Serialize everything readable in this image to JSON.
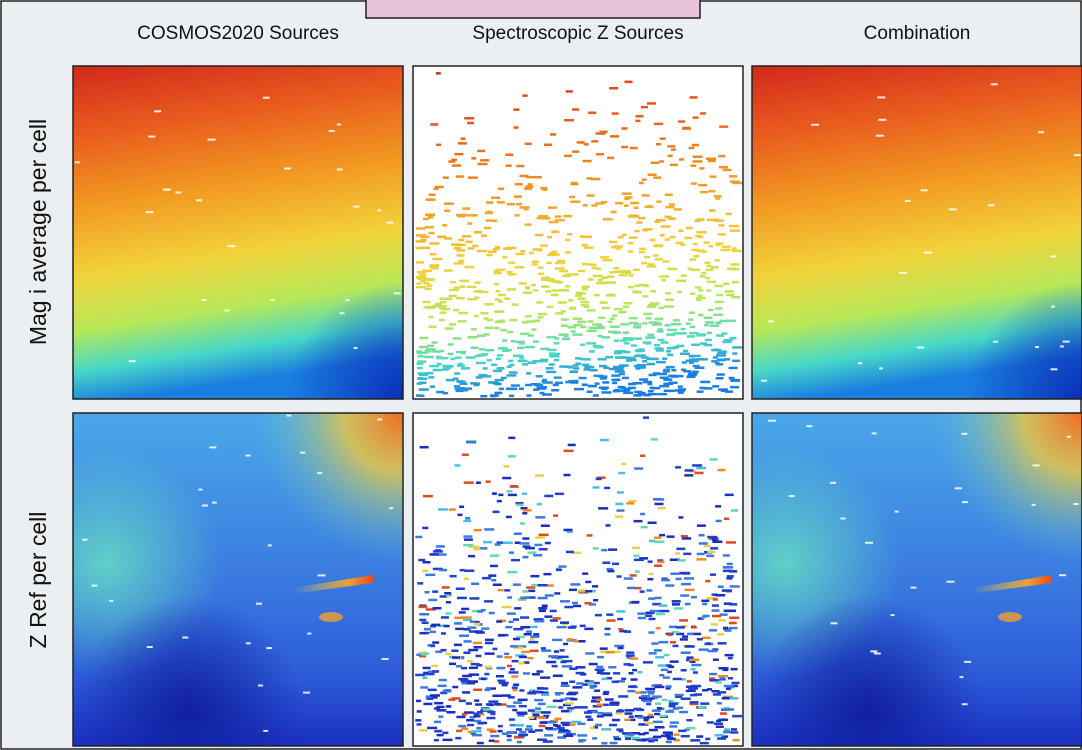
{
  "columns": [
    "COSMOS2020 Sources",
    "Spectroscopic Z Sources",
    "Combination"
  ],
  "rows": [
    "Mag i average per cell",
    "Z Ref per cell"
  ]
}
